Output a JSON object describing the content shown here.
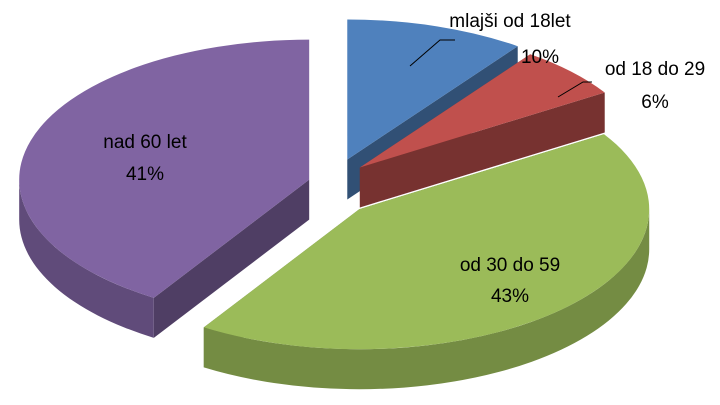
{
  "chart_data": {
    "type": "pie",
    "categories": [
      "mlajši od 18let",
      "od 18 do 29",
      "od 30 do 59",
      "nad 60 let"
    ],
    "values": [
      10,
      6,
      43,
      41
    ],
    "value_labels": [
      "10%",
      "6%",
      "43%",
      "41%"
    ],
    "colors": [
      "#4f81bd",
      "#c0504d",
      "#9bbb59",
      "#8064a2"
    ]
  }
}
